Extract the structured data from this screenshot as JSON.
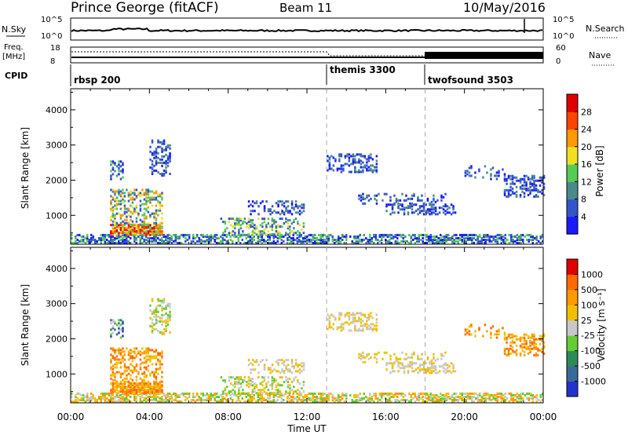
{
  "header": {
    "station": "Prince George (fitACF)",
    "beam": "Beam 11",
    "date": "10/May/2016"
  },
  "top_panels": {
    "nsky_label": "N.Sky",
    "nsky_ticks": [
      "10^5",
      "10^0"
    ],
    "nsearch_label": "N.Search",
    "nsearch_ticks": [
      "10^5",
      "10^0"
    ],
    "freq_label": "Freq.",
    "freq_unit": "[MHz]",
    "freq_ticks": [
      "18",
      "8"
    ],
    "nave_label": "Nave",
    "nave_ticks": [
      "60",
      "0"
    ],
    "cpid_label": "CPID"
  },
  "chart_data": [
    {
      "type": "heatmap",
      "name": "power",
      "ylabel": "Slant Range [km]",
      "xlabel": "",
      "xlim_hours": [
        0,
        24
      ],
      "ylim_km": [
        180,
        4600
      ],
      "y_ticks": [
        "1000",
        "2000",
        "3000",
        "4000"
      ],
      "x_ticks": [
        "00:00",
        "04:00",
        "08:00",
        "12:00",
        "16:00",
        "20:00",
        "00:00"
      ],
      "colorbar": {
        "label": "Power [dB]",
        "ticks": [
          "4",
          "8",
          "12",
          "16",
          "20",
          "24",
          "28"
        ],
        "colors": [
          "#1a1aff",
          "#3355cc",
          "#4a8a8a",
          "#55cc55",
          "#f0e020",
          "#ff9900",
          "#ff4400",
          "#e00000"
        ]
      },
      "cpid_markers": [
        {
          "label": "rbsp 200",
          "hour": 0.0
        },
        {
          "label": "themis 3300",
          "hour": 13.0
        },
        {
          "label": "twofsound 3503",
          "hour": 18.0
        }
      ]
    },
    {
      "type": "heatmap",
      "name": "velocity",
      "ylabel": "Slant Range [km]",
      "xlabel": "Time UT",
      "xlim_hours": [
        0,
        24
      ],
      "ylim_km": [
        180,
        4600
      ],
      "y_ticks": [
        "1000",
        "2000",
        "3000",
        "4000"
      ],
      "x_ticks": [
        "00:00",
        "04:00",
        "08:00",
        "12:00",
        "16:00",
        "20:00",
        "00:00"
      ],
      "colorbar": {
        "label": "Velocity [m s⁻¹]",
        "ticks": [
          "1000",
          "500",
          "100",
          "25",
          "-25",
          "-100",
          "-500",
          "-1000"
        ],
        "colors": [
          "#2233cc",
          "#3a6a9a",
          "#2e8b57",
          "#66cc33",
          "#c8c8c8",
          "#f0c000",
          "#ff9900",
          "#ff6a00",
          "#e00000"
        ]
      }
    }
  ]
}
